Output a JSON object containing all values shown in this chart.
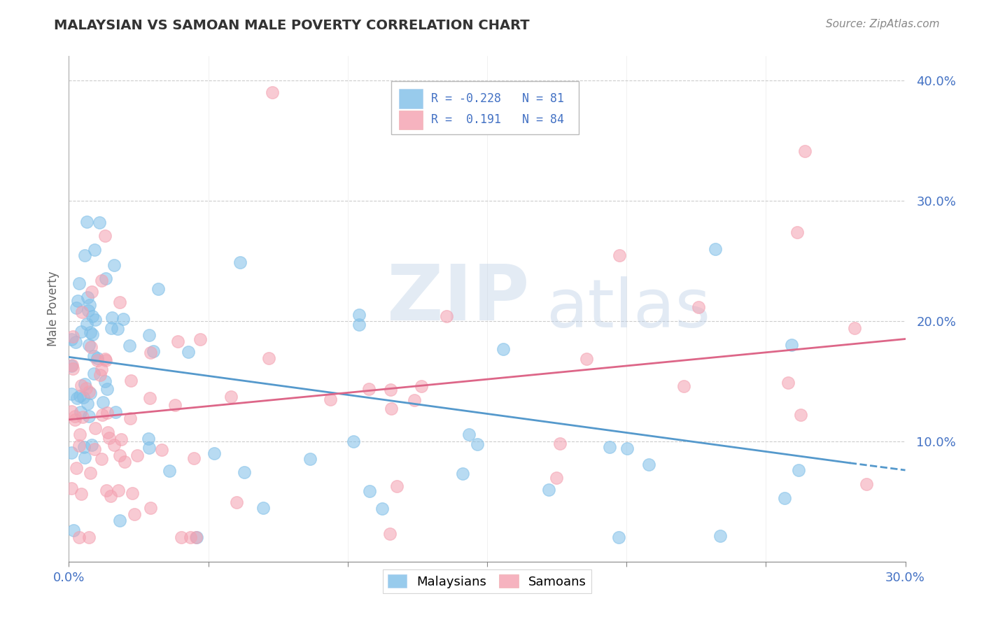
{
  "title": "MALAYSIAN VS SAMOAN MALE POVERTY CORRELATION CHART",
  "source": "Source: ZipAtlas.com",
  "ylabel": "Male Poverty",
  "xlim": [
    0.0,
    0.3
  ],
  "ylim": [
    0.0,
    0.42
  ],
  "xtick_positions": [
    0.0,
    0.05,
    0.1,
    0.15,
    0.2,
    0.25,
    0.3
  ],
  "xticklabels": [
    "0.0%",
    "",
    "",
    "",
    "",
    "",
    "30.0%"
  ],
  "ytick_positions": [
    0.1,
    0.2,
    0.3,
    0.4
  ],
  "yticklabels": [
    "10.0%",
    "20.0%",
    "30.0%",
    "40.0%"
  ],
  "R_malaysian": -0.228,
  "N_malaysian": 81,
  "R_samoan": 0.191,
  "N_samoan": 84,
  "color_malaysian": "#7fbfe8",
  "color_samoan": "#f4a0b0",
  "color_line_malaysian": "#5599cc",
  "color_line_samoan": "#dd6688",
  "background_color": "#ffffff",
  "grid_color": "#cccccc",
  "line_m_x0": 0.0,
  "line_m_y0": 0.17,
  "line_m_x1": 0.28,
  "line_m_y1": 0.082,
  "line_m_xdash": 0.3,
  "line_m_ydash": 0.076,
  "line_s_x0": 0.0,
  "line_s_y0": 0.118,
  "line_s_x1": 0.3,
  "line_s_y1": 0.185,
  "watermark_zip": "ZIP",
  "watermark_atlas": "atlas",
  "legend_label1": "Malaysians",
  "legend_label2": "Samoans"
}
